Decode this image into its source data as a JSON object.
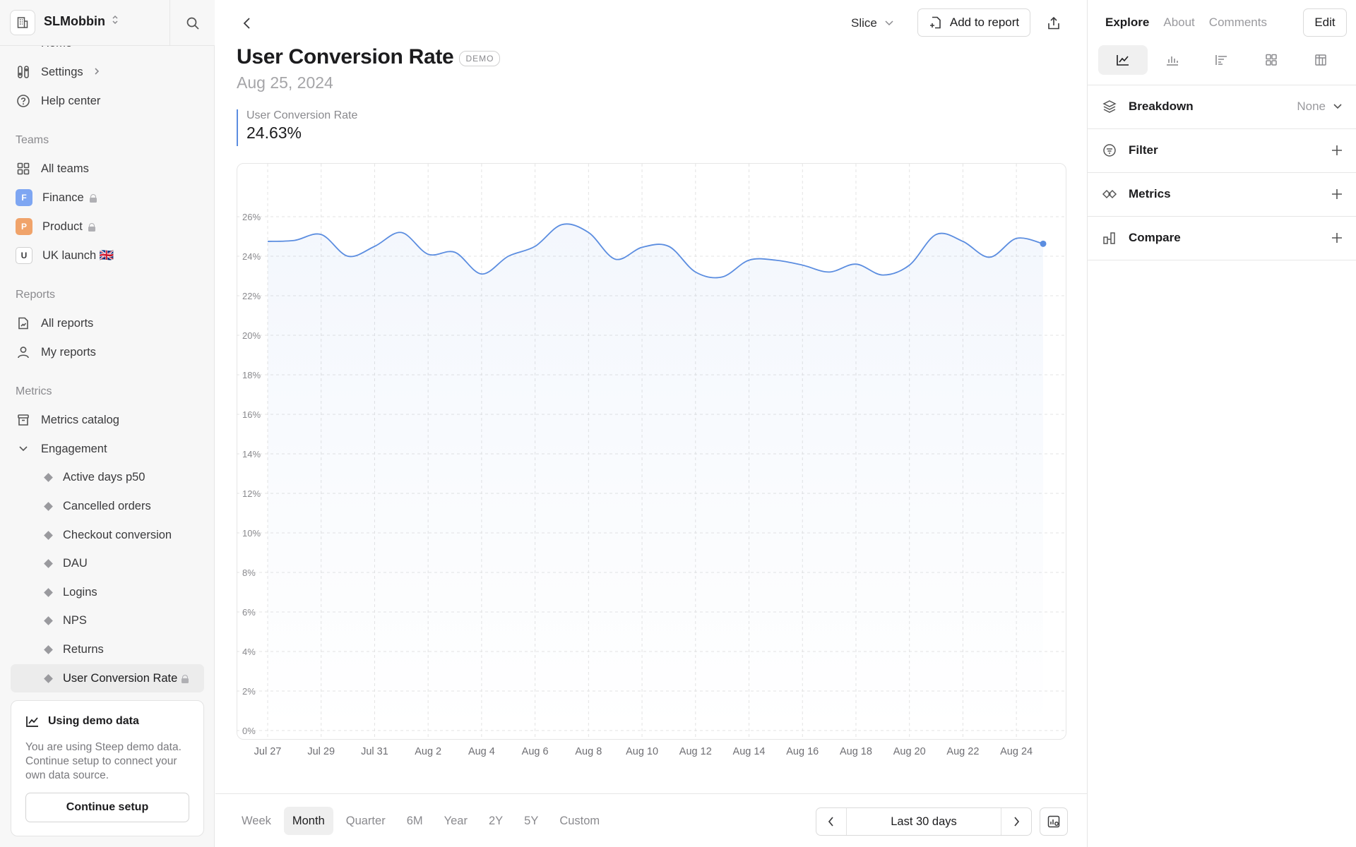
{
  "org": {
    "name": "SLMobbin"
  },
  "sidebar": {
    "home_label": "Home",
    "settings_label": "Settings",
    "help_label": "Help center",
    "teams_heading": "Teams",
    "teams": [
      {
        "label": "All teams"
      },
      {
        "label": "Finance",
        "badge": "F",
        "color": "#7ea6f2"
      },
      {
        "label": "Product",
        "badge": "P",
        "color": "#f0a36a"
      },
      {
        "label": "UK launch 🇬🇧",
        "badge": "U"
      }
    ],
    "reports_heading": "Reports",
    "reports": [
      {
        "label": "All reports"
      },
      {
        "label": "My reports"
      }
    ],
    "metrics_heading": "Metrics",
    "metrics_catalog_label": "Metrics catalog",
    "engagement_label": "Engagement",
    "engagement_items": [
      {
        "label": "Active days p50"
      },
      {
        "label": "Cancelled orders"
      },
      {
        "label": "Checkout conversion"
      },
      {
        "label": "DAU"
      },
      {
        "label": "Logins"
      },
      {
        "label": "NPS"
      },
      {
        "label": "Returns"
      },
      {
        "label": "User Conversion Rate"
      }
    ]
  },
  "demo_card": {
    "title": "Using demo data",
    "text": "You are using Steep demo data. Continue setup to connect your own data source.",
    "button": "Continue setup"
  },
  "header": {
    "slice_label": "Slice",
    "add_report_label": "Add to report"
  },
  "page": {
    "title": "User Conversion Rate",
    "badge": "DEMO",
    "date": "Aug 25, 2024",
    "kpi_label": "User Conversion Rate",
    "kpi_value": "24.63%"
  },
  "chart_data": {
    "type": "line",
    "title": "User Conversion Rate",
    "xlabel": "",
    "ylabel": "",
    "ylim": [
      0,
      26
    ],
    "y_ticks": [
      "0%",
      "2%",
      "4%",
      "6%",
      "8%",
      "10%",
      "12%",
      "14%",
      "16%",
      "18%",
      "20%",
      "22%",
      "24%",
      "26%"
    ],
    "x_tick_labels": [
      "Jul 27",
      "Jul 29",
      "Jul 31",
      "Aug 2",
      "Aug 4",
      "Aug 6",
      "Aug 8",
      "Aug 10",
      "Aug 12",
      "Aug 14",
      "Aug 16",
      "Aug 18",
      "Aug 20",
      "Aug 22",
      "Aug 24"
    ],
    "series": [
      {
        "name": "User Conversion Rate",
        "color": "#5b8de0",
        "x": [
          "Jul 27",
          "Jul 28",
          "Jul 29",
          "Jul 30",
          "Jul 31",
          "Aug 1",
          "Aug 2",
          "Aug 3",
          "Aug 4",
          "Aug 5",
          "Aug 6",
          "Aug 7",
          "Aug 8",
          "Aug 9",
          "Aug 10",
          "Aug 11",
          "Aug 12",
          "Aug 13",
          "Aug 14",
          "Aug 15",
          "Aug 16",
          "Aug 17",
          "Aug 18",
          "Aug 19",
          "Aug 20",
          "Aug 21",
          "Aug 22",
          "Aug 23",
          "Aug 24",
          "Aug 25"
        ],
        "values": [
          24.75,
          24.8,
          25.1,
          24.0,
          24.5,
          25.2,
          24.1,
          24.2,
          23.1,
          24.0,
          24.5,
          25.6,
          25.2,
          23.85,
          24.45,
          24.5,
          23.2,
          22.95,
          23.8,
          23.8,
          23.55,
          23.2,
          23.6,
          23.05,
          23.55,
          25.1,
          24.75,
          23.95,
          24.9,
          24.63
        ]
      }
    ]
  },
  "range": {
    "tabs": [
      "Week",
      "Month",
      "Quarter",
      "6M",
      "Year",
      "2Y",
      "5Y",
      "Custom"
    ],
    "active": "Month",
    "period_label": "Last 30 days"
  },
  "right_panel": {
    "tabs": [
      "Explore",
      "About",
      "Comments"
    ],
    "active_tab": "Explore",
    "edit_label": "Edit",
    "breakdown_label": "Breakdown",
    "breakdown_value": "None",
    "filter_label": "Filter",
    "metrics_label": "Metrics",
    "compare_label": "Compare"
  }
}
